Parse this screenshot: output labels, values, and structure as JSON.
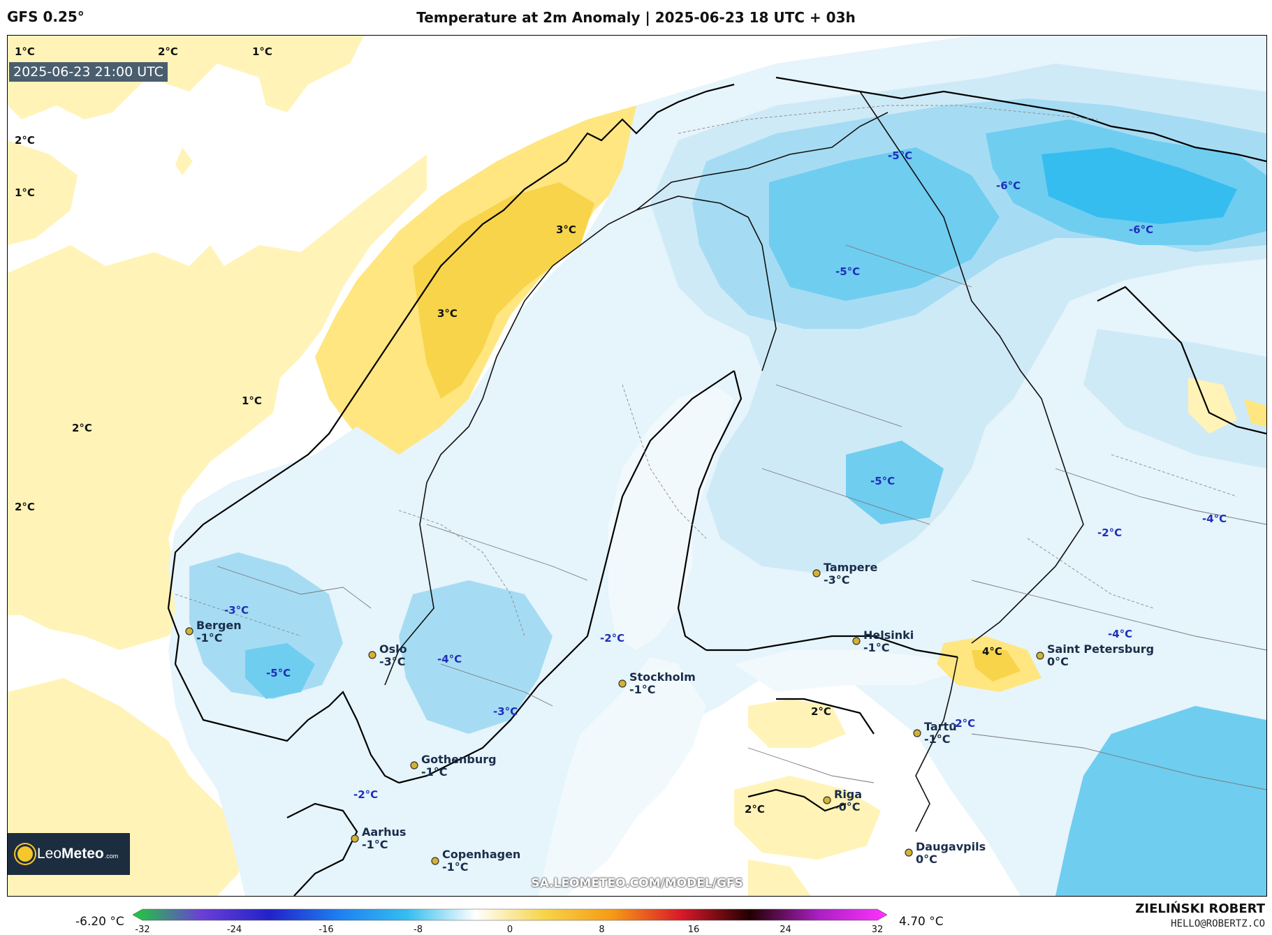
{
  "header": {
    "model": "GFS 0.25°",
    "title": "Temperature at 2m Anomaly | 2025-06-23 18 UTC + 03h"
  },
  "map": {
    "timestamp": "2025-06-23 21:00 UTC",
    "website": "SA.LEOMETEO.COM/MODEL/GFS",
    "logo": {
      "text_left": "Leo",
      "text_right": "Meteo",
      "domain": ".com"
    },
    "colors": {
      "sea_neutral": "#ffffff",
      "warm_1": "#fff3b8",
      "warm_2": "#ffe680",
      "warm_3": "#f7d44a",
      "cold_1": "#e6f4fb",
      "cold_2": "#cfeaf7",
      "cold_3": "#a6dcf3",
      "cold_4": "#6fcdf0",
      "cold_5": "#35bdf0",
      "coast": "#000000",
      "border": "#555555",
      "city_dot": "#d4b232"
    },
    "anomaly_labels": [
      {
        "text": "1°C",
        "kind": "warm"
      },
      {
        "text": "2°C",
        "kind": "warm"
      },
      {
        "text": "1°C",
        "kind": "warm"
      },
      {
        "text": "2°C",
        "kind": "warm"
      },
      {
        "text": "1°C",
        "kind": "warm"
      },
      {
        "text": "1°C",
        "kind": "warm"
      },
      {
        "text": "2°C",
        "kind": "warm"
      },
      {
        "text": "2°C",
        "kind": "warm"
      },
      {
        "text": "3°C",
        "kind": "warm"
      },
      {
        "text": "3°C",
        "kind": "warm"
      },
      {
        "text": "-5°C",
        "kind": "cold"
      },
      {
        "text": "-6°C",
        "kind": "cold"
      },
      {
        "text": "-6°C",
        "kind": "cold"
      },
      {
        "text": "-5°C",
        "kind": "cold"
      },
      {
        "text": "-5°C",
        "kind": "cold"
      },
      {
        "text": "-4°C",
        "kind": "cold"
      },
      {
        "text": "-2°C",
        "kind": "cold"
      },
      {
        "text": "-4°C",
        "kind": "cold"
      },
      {
        "text": "-3°C",
        "kind": "cold"
      },
      {
        "text": "-5°C",
        "kind": "cold"
      },
      {
        "text": "-4°C",
        "kind": "cold"
      },
      {
        "text": "-2°C",
        "kind": "cold"
      },
      {
        "text": "-3°C",
        "kind": "cold"
      },
      {
        "text": "-2°C",
        "kind": "cold"
      },
      {
        "text": "-2°C",
        "kind": "cold"
      },
      {
        "text": "2°C",
        "kind": "warm"
      },
      {
        "text": "2°C",
        "kind": "warm"
      },
      {
        "text": "4°C",
        "kind": "warm"
      }
    ],
    "cities": [
      {
        "name": "Bergen",
        "value": "-1°C"
      },
      {
        "name": "Oslo",
        "value": "-3°C"
      },
      {
        "name": "Stockholm",
        "value": "-1°C"
      },
      {
        "name": "Gothenburg",
        "value": "-1°C"
      },
      {
        "name": "Aarhus",
        "value": "-1°C"
      },
      {
        "name": "Copenhagen",
        "value": "-1°C"
      },
      {
        "name": "Tampere",
        "value": "-3°C"
      },
      {
        "name": "Helsinki",
        "value": "-1°C"
      },
      {
        "name": "Saint Petersburg",
        "value": "0°C"
      },
      {
        "name": "Tartu",
        "value": "-1°C"
      },
      {
        "name": "Riga",
        "value": "-0°C"
      },
      {
        "name": "Daugavpils",
        "value": "0°C"
      }
    ]
  },
  "colorbar": {
    "min_label": "-6.20 °C",
    "max_label": "4.70 °C",
    "ticks": [
      "-32",
      "-24",
      "-16",
      "-8",
      "0",
      "8",
      "16",
      "24",
      "32"
    ],
    "range": [
      -32,
      32
    ],
    "stops": [
      "#1ecc3a",
      "#6b3fd6",
      "#2222c8",
      "#1e7ff0",
      "#35bdf0",
      "#ffffff",
      "#f7d44a",
      "#f59a16",
      "#d8192a",
      "#220000",
      "#aa1fc2",
      "#ff33ff"
    ]
  },
  "footer": {
    "author": "ZIELIŃSKI ROBERT",
    "email": "HELLO@ROBERTZ.CO"
  }
}
